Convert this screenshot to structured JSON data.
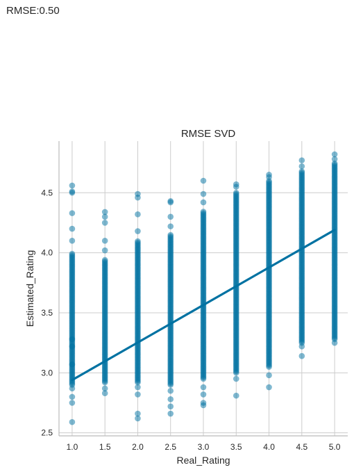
{
  "header": {
    "rmse_text": "RMSE:0.50"
  },
  "chart_data": {
    "type": "scatter",
    "title": "RMSE SVD",
    "xlabel": "Real_Rating",
    "ylabel": "Estimated_Rating",
    "xlim": [
      0.8,
      5.2
    ],
    "ylim": [
      2.475,
      4.93
    ],
    "grid": true,
    "x_ticks": [
      "1.0",
      "1.5",
      "2.0",
      "2.5",
      "3.0",
      "3.5",
      "4.0",
      "4.5",
      "5.0"
    ],
    "y_ticks": [
      "2.5",
      "3.0",
      "3.5",
      "4.0",
      "4.5"
    ],
    "colors": {
      "points": "#0072a2",
      "line": "#0072a2",
      "grid": "#cccccc",
      "spine": "#bbbbbb"
    },
    "groups": [
      {
        "x": 1.0,
        "dense_range": [
          2.9,
          4.0
        ],
        "outliers": [
          2.59,
          2.75,
          2.8,
          2.87,
          3.07,
          3.22,
          3.28,
          4.1,
          4.2,
          4.33,
          4.5,
          4.51,
          4.56
        ]
      },
      {
        "x": 1.5,
        "dense_range": [
          2.92,
          3.95
        ],
        "outliers": [
          2.83,
          2.87,
          4.02,
          4.1,
          4.25,
          4.3,
          4.34
        ]
      },
      {
        "x": 2.0,
        "dense_range": [
          2.92,
          4.1
        ],
        "outliers": [
          2.62,
          2.66,
          2.82,
          2.88,
          4.18,
          4.32,
          4.46,
          4.49
        ]
      },
      {
        "x": 2.5,
        "dense_range": [
          2.9,
          4.15
        ],
        "outliers": [
          2.66,
          2.72,
          2.78,
          2.85,
          4.22,
          4.3,
          4.42,
          4.43
        ]
      },
      {
        "x": 3.0,
        "dense_range": [
          2.95,
          4.35
        ],
        "outliers": [
          2.73,
          2.75,
          2.82,
          2.88,
          4.42,
          4.49,
          4.6
        ]
      },
      {
        "x": 3.5,
        "dense_range": [
          3.0,
          4.5
        ],
        "outliers": [
          2.81,
          2.95,
          4.55,
          4.57
        ]
      },
      {
        "x": 4.0,
        "dense_range": [
          3.05,
          4.6
        ],
        "outliers": [
          2.88,
          2.98,
          4.63,
          4.65
        ]
      },
      {
        "x": 4.5,
        "dense_range": [
          3.25,
          4.68
        ],
        "outliers": [
          3.14,
          3.22,
          4.72,
          4.77
        ]
      },
      {
        "x": 5.0,
        "dense_range": [
          3.28,
          4.75
        ],
        "outliers": [
          3.25,
          4.78,
          4.82
        ]
      }
    ],
    "regression_line": {
      "x": [
        1.0,
        5.0
      ],
      "y": [
        2.94,
        4.19
      ]
    }
  }
}
